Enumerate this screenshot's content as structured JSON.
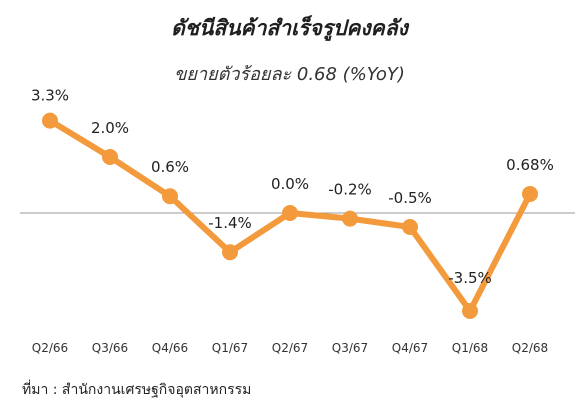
{
  "chart_data": {
    "type": "line",
    "title": "ดัชนีสินค้าสำเร็จรูปคงคลัง",
    "subtitle": "ขยายตัวร้อยละ 0.68 (%YoY)",
    "categories": [
      "Q2/66",
      "Q3/66",
      "Q4/66",
      "Q1/67",
      "Q2/67",
      "Q3/67",
      "Q4/67",
      "Q1/68",
      "Q2/68"
    ],
    "series": [
      {
        "values": [
          3.3,
          2.0,
          0.6,
          -1.4,
          0.0,
          -0.2,
          -0.5,
          -3.5,
          0.68
        ],
        "labels": [
          "3.3%",
          "2.0%",
          "0.6%",
          "-1.4%",
          "0.0%",
          "-0.2%",
          "-0.5%",
          "-3.5%",
          "0.68%"
        ],
        "color": "#F39A3C"
      }
    ],
    "xlabel": "",
    "ylabel": "",
    "grid": false,
    "legend": "none"
  },
  "source": "ที่มา : สำนักงานเศรษฐกิจอุตสาหกรรม"
}
